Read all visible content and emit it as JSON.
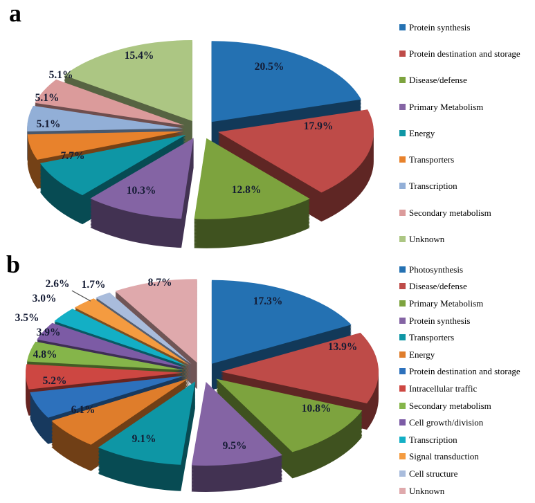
{
  "figure": {
    "background": "#FFFFFF",
    "panel_a_letter": "a",
    "panel_b_letter": "b",
    "percent_label_color": "#141B33",
    "legend_text_color": "#000000"
  },
  "chart_data": [
    {
      "type": "pie",
      "style": "3d-exploded",
      "panel_label": "a",
      "unit": "%",
      "direction": "clockwise",
      "start_angle_deg": 0,
      "legend_position": "right",
      "data_labels": "percent-one-decimal",
      "slices": [
        {
          "label": "Protein synthesis",
          "value": 20.5,
          "color": "#2471B2"
        },
        {
          "label": "Protein destination and storage",
          "value": 17.9,
          "color": "#BE4B48"
        },
        {
          "label": "Disease/defense",
          "value": 12.8,
          "color": "#7DA33E"
        },
        {
          "label": "Primary Metabolism",
          "value": 10.3,
          "color": "#8464A4"
        },
        {
          "label": "Energy",
          "value": 7.7,
          "color": "#0E96A5"
        },
        {
          "label": "Transporters",
          "value": 5.1,
          "color": "#E8822C"
        },
        {
          "label": "Transcription",
          "value": 5.1,
          "color": "#92AFD7"
        },
        {
          "label": "Secondary metabolism",
          "value": 5.1,
          "color": "#DB9B9B"
        },
        {
          "label": "Unknown",
          "value": 15.4,
          "color": "#ACC683"
        }
      ]
    },
    {
      "type": "pie",
      "style": "3d-exploded",
      "panel_label": "b",
      "unit": "%",
      "direction": "clockwise",
      "start_angle_deg": 0,
      "legend_position": "right",
      "data_labels": "percent-one-decimal",
      "slices": [
        {
          "label": "Photosynthesis",
          "value": 17.3,
          "color": "#2471B2"
        },
        {
          "label": "Disease/defense",
          "value": 13.9,
          "color": "#BE4B48"
        },
        {
          "label": "Primary Metabolism",
          "value": 10.8,
          "color": "#7DA33E"
        },
        {
          "label": "Protein synthesis",
          "value": 9.5,
          "color": "#8464A4"
        },
        {
          "label": "Transporters",
          "value": 9.1,
          "color": "#0E96A5"
        },
        {
          "label": "Energy",
          "value": 6.1,
          "color": "#DF7D2B"
        },
        {
          "label": "Protein destination and storage",
          "value": 5.2,
          "color": "#2D71BC"
        },
        {
          "label": "Intracellular traffic",
          "value": 4.8,
          "color": "#CD4742"
        },
        {
          "label": "Secondary metabolism",
          "value": 3.9,
          "color": "#85B54A"
        },
        {
          "label": "Cell growth/division",
          "value": 3.5,
          "color": "#7C5BA5",
          "label_outside": true
        },
        {
          "label": "Transcription",
          "value": 3.0,
          "color": "#13AFC5",
          "label_outside": true
        },
        {
          "label": "Signal transduction",
          "value": 2.6,
          "color": "#F49B40",
          "label_outside": true,
          "leader_line": true
        },
        {
          "label": "Cell structure",
          "value": 1.7,
          "color": "#A9BCDC",
          "label_outside": true
        },
        {
          "label": "Unknown",
          "value": 8.7,
          "color": "#DFA9AC"
        }
      ]
    }
  ]
}
